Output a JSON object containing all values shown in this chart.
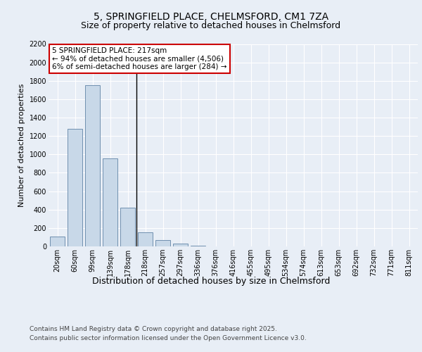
{
  "title1": "5, SPRINGFIELD PLACE, CHELMSFORD, CM1 7ZA",
  "title2": "Size of property relative to detached houses in Chelmsford",
  "xlabel": "Distribution of detached houses by size in Chelmsford",
  "ylabel": "Number of detached properties",
  "categories": [
    "20sqm",
    "60sqm",
    "99sqm",
    "139sqm",
    "178sqm",
    "218sqm",
    "257sqm",
    "297sqm",
    "336sqm",
    "376sqm",
    "416sqm",
    "455sqm",
    "495sqm",
    "534sqm",
    "574sqm",
    "613sqm",
    "653sqm",
    "692sqm",
    "732sqm",
    "771sqm",
    "811sqm"
  ],
  "values": [
    110,
    1280,
    1750,
    960,
    420,
    150,
    70,
    30,
    10,
    0,
    0,
    0,
    0,
    0,
    0,
    0,
    0,
    0,
    0,
    0,
    0
  ],
  "bar_color": "#c8d8e8",
  "bar_edge_color": "#7090b0",
  "highlight_bar_index": 5,
  "highlight_line_color": "#000000",
  "annotation_line1": "5 SPRINGFIELD PLACE: 217sqm",
  "annotation_line2": "← 94% of detached houses are smaller (4,506)",
  "annotation_line3": "6% of semi-detached houses are larger (284) →",
  "annotation_box_color": "#ffffff",
  "annotation_box_edge_color": "#cc0000",
  "ylim": [
    0,
    2200
  ],
  "yticks": [
    0,
    200,
    400,
    600,
    800,
    1000,
    1200,
    1400,
    1600,
    1800,
    2000,
    2200
  ],
  "background_color": "#e8eef6",
  "plot_background_color": "#e8eef6",
  "grid_color": "#ffffff",
  "footer_line1": "Contains HM Land Registry data © Crown copyright and database right 2025.",
  "footer_line2": "Contains public sector information licensed under the Open Government Licence v3.0.",
  "title1_fontsize": 10,
  "title2_fontsize": 9,
  "xlabel_fontsize": 9,
  "ylabel_fontsize": 8,
  "tick_fontsize": 7,
  "annotation_fontsize": 7.5,
  "footer_fontsize": 6.5
}
